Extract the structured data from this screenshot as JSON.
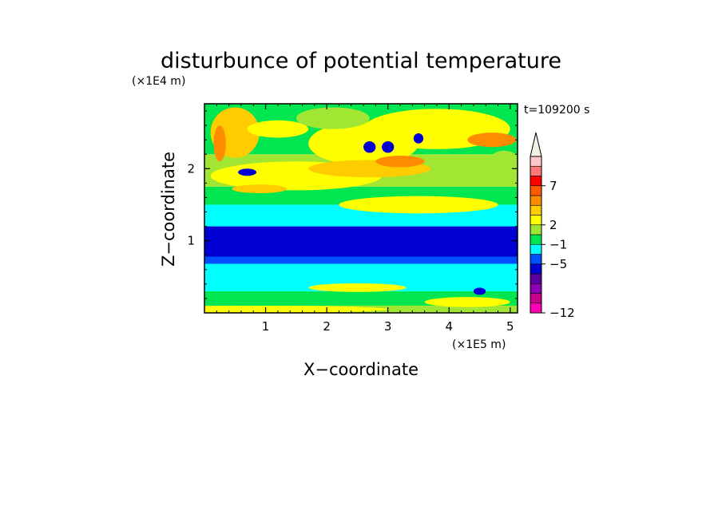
{
  "chart_data": {
    "type": "heatmap",
    "title": "disturbunce of potential temperature",
    "xlabel": "X−coordinate",
    "ylabel": "Z−coordinate",
    "x_unit": "(×1E5 m)",
    "y_unit": "(×1E4 m)",
    "time_label": "t=109200 s",
    "xlim": [
      0,
      5.12
    ],
    "ylim": [
      0,
      2.9
    ],
    "x_ticks": [
      1,
      2,
      3,
      4,
      5
    ],
    "y_ticks": [
      1,
      2
    ],
    "colorbar": {
      "colors": [
        "#ff00b4",
        "#c8008c",
        "#8c00b4",
        "#5a00a0",
        "#0000d2",
        "#0050ff",
        "#00ffff",
        "#00e650",
        "#a0e632",
        "#ffff00",
        "#ffcc00",
        "#ff8c00",
        "#ff5a00",
        "#ff0000",
        "#ff7878",
        "#ffc8c8"
      ],
      "extend_color": "#f5f0e6",
      "tick_labels": [
        "−12",
        "−5",
        "−1",
        "2",
        "7"
      ],
      "tick_level_index": [
        0,
        5,
        7,
        9,
        13
      ]
    },
    "bands": [
      {
        "z0": 0,
        "z1": 0.1,
        "color": "#a0e632"
      },
      {
        "z0": 0.1,
        "z1": 0.3,
        "color": "#00e650"
      },
      {
        "z0": 0.3,
        "z1": 0.68,
        "color": "#00ffff"
      },
      {
        "z0": 0.68,
        "z1": 0.78,
        "color": "#0050ff"
      },
      {
        "z0": 0.78,
        "z1": 1.2,
        "color": "#0000d2"
      },
      {
        "z0": 1.2,
        "z1": 1.5,
        "color": "#00ffff"
      },
      {
        "z0": 1.5,
        "z1": 1.75,
        "color": "#00e650"
      },
      {
        "z0": 1.75,
        "z1": 2.2,
        "color": "#a0e632"
      },
      {
        "z0": 2.2,
        "z1": 2.9,
        "color": "#00e650"
      }
    ],
    "blobs": [
      {
        "x": 2.6,
        "z": 2.35,
        "rx": 0.9,
        "rz": 0.3,
        "color": "#ffff00"
      },
      {
        "x": 1.5,
        "z": 1.9,
        "rx": 1.4,
        "rz": 0.2,
        "color": "#ffff00"
      },
      {
        "x": 3.8,
        "z": 2.55,
        "rx": 1.2,
        "rz": 0.28,
        "color": "#ffff00"
      },
      {
        "x": 0.5,
        "z": 2.5,
        "rx": 0.4,
        "rz": 0.35,
        "color": "#ffcc00"
      },
      {
        "x": 0.9,
        "z": 1.72,
        "rx": 0.45,
        "rz": 0.06,
        "color": "#ffcc00"
      },
      {
        "x": 2.7,
        "z": 2.0,
        "rx": 1.0,
        "rz": 0.12,
        "color": "#ffcc00"
      },
      {
        "x": 4.7,
        "z": 2.4,
        "rx": 0.4,
        "rz": 0.1,
        "color": "#ff8c00"
      },
      {
        "x": 3.2,
        "z": 2.1,
        "rx": 0.4,
        "rz": 0.08,
        "color": "#ff8c00"
      },
      {
        "x": 0.25,
        "z": 2.35,
        "rx": 0.1,
        "rz": 0.25,
        "color": "#ff8c00"
      },
      {
        "x": 3.5,
        "z": 1.5,
        "rx": 1.3,
        "rz": 0.12,
        "color": "#ffff00"
      },
      {
        "x": 0.7,
        "z": 1.95,
        "rx": 0.15,
        "rz": 0.05,
        "color": "#0000d2"
      },
      {
        "x": 2.7,
        "z": 2.3,
        "rx": 0.1,
        "rz": 0.08,
        "color": "#0000d2"
      },
      {
        "x": 3.0,
        "z": 2.3,
        "rx": 0.1,
        "rz": 0.08,
        "color": "#0000d2"
      },
      {
        "x": 3.5,
        "z": 2.42,
        "rx": 0.08,
        "rz": 0.07,
        "color": "#0000d2"
      },
      {
        "x": 4.5,
        "z": 0.3,
        "rx": 0.1,
        "rz": 0.05,
        "color": "#0000d2"
      },
      {
        "x": 2.5,
        "z": 0.35,
        "rx": 0.8,
        "rz": 0.06,
        "color": "#ffff00"
      },
      {
        "x": 4.3,
        "z": 0.15,
        "rx": 0.7,
        "rz": 0.07,
        "color": "#ffff00"
      },
      {
        "x": 1.0,
        "z": 0.05,
        "rx": 2.0,
        "rz": 0.05,
        "color": "#ffff00"
      },
      {
        "x": 4.9,
        "z": 2.1,
        "rx": 0.25,
        "rz": 0.15,
        "color": "#a0e632"
      },
      {
        "x": 1.2,
        "z": 2.55,
        "rx": 0.5,
        "rz": 0.12,
        "color": "#ffff00"
      },
      {
        "x": 2.1,
        "z": 2.7,
        "rx": 0.6,
        "rz": 0.15,
        "color": "#a0e632"
      }
    ]
  }
}
